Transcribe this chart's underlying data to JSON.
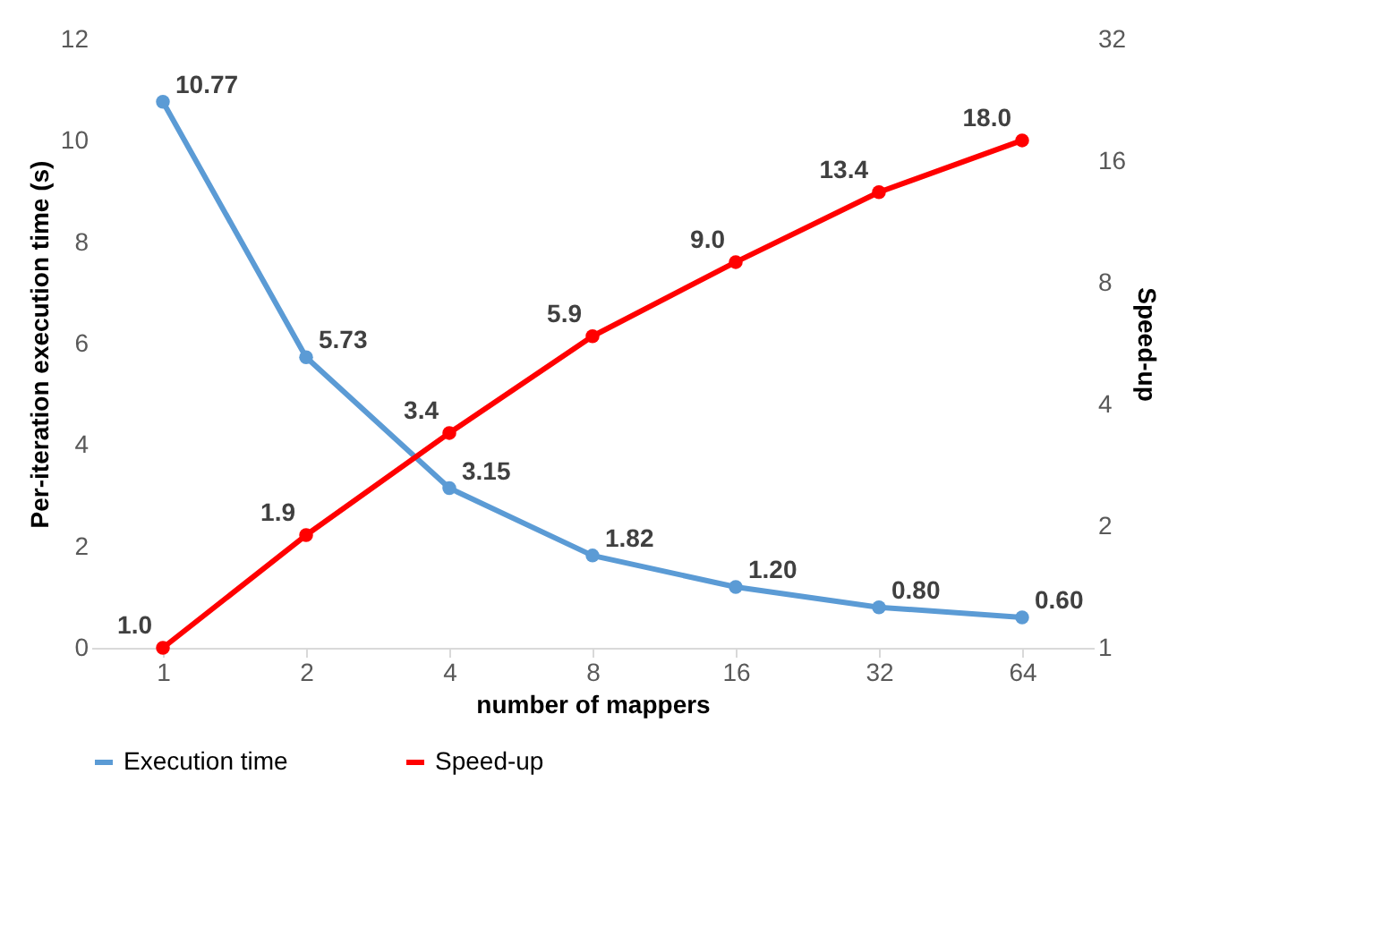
{
  "chart_data": {
    "type": "line",
    "xlabel": "number of mappers",
    "ylabel": "Per-iteration execution time (s)",
    "y2label": "Speed-up",
    "categories": [
      "1",
      "2",
      "4",
      "8",
      "16",
      "32",
      "64"
    ],
    "series": [
      {
        "name": "Execution time",
        "color": "#5b9bd5",
        "values": [
          10.77,
          5.73,
          3.15,
          1.82,
          1.2,
          0.8,
          0.6
        ],
        "value_labels": [
          "10.77",
          "5.73",
          "3.15",
          "1.82",
          "1.20",
          "0.80",
          "0.60"
        ]
      },
      {
        "name": "Speed-up",
        "color": "#ff0000",
        "axis": "y2",
        "values": [
          1.0,
          1.9,
          3.4,
          5.9,
          9.0,
          13.4,
          18.0
        ],
        "value_labels": [
          "1.0",
          "1.9",
          "3.4",
          "5.9",
          "9.0",
          "13.4",
          "18.0"
        ]
      }
    ],
    "ylim": [
      0,
      12
    ],
    "yticks": [
      0,
      2,
      4,
      6,
      8,
      10,
      12
    ],
    "y2lim": [
      1,
      32
    ],
    "y2ticks": [
      1,
      2,
      4,
      8,
      16,
      32
    ],
    "log": "y2",
    "grid": false,
    "legend": "bottom",
    "marker": "circle",
    "line_style": "solid"
  }
}
